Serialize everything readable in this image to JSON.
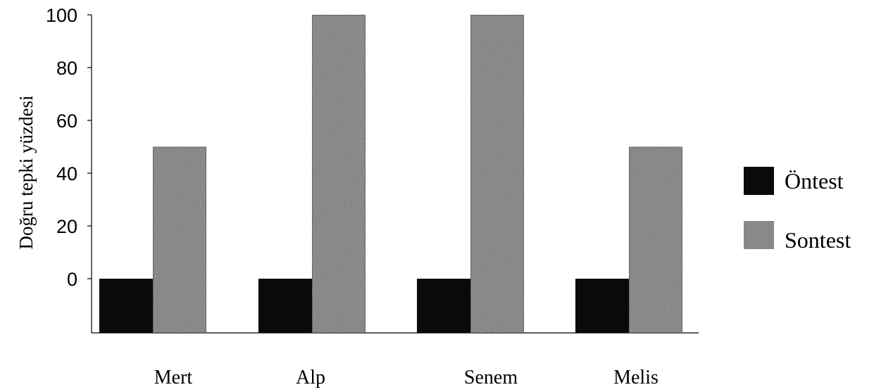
{
  "chart_data": {
    "type": "bar",
    "title": "",
    "xlabel": "",
    "ylabel": "Doğru tepki yüzdesi",
    "categories": [
      "Mert",
      "Alp",
      "Senem",
      "Melis"
    ],
    "series": [
      {
        "name": "Öntest",
        "values": [
          0,
          0,
          0,
          0
        ],
        "color": "#0a0a0a"
      },
      {
        "name": "Sontest",
        "values": [
          50,
          100,
          100,
          50
        ],
        "color": "#6f6f6f"
      }
    ],
    "ylim": [
      0,
      100
    ],
    "yticks": [
      0,
      20,
      40,
      60,
      80,
      100
    ],
    "grid": false,
    "legend": "right"
  }
}
